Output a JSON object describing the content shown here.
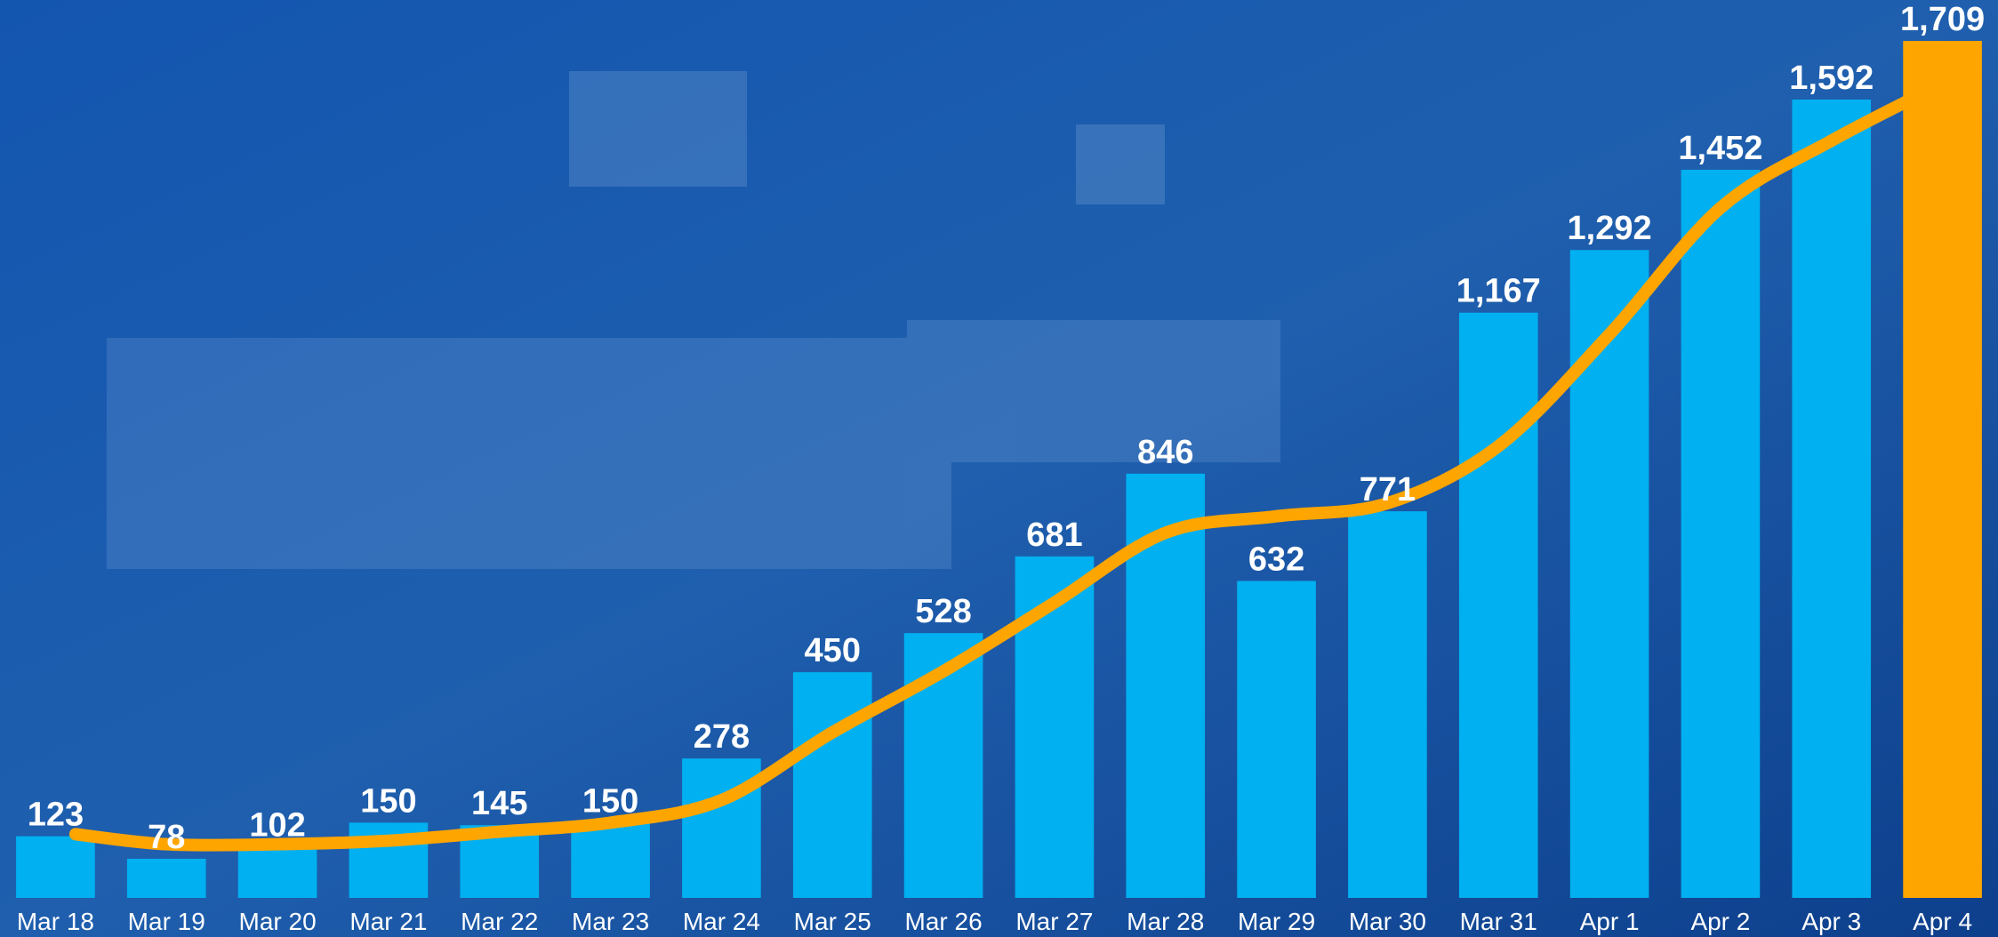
{
  "chart_data": {
    "type": "bar",
    "categories": [
      "Mar 18",
      "Mar 19",
      "Mar 20",
      "Mar 21",
      "Mar 22",
      "Mar 23",
      "Mar 24",
      "Mar 25",
      "Mar 26",
      "Mar 27",
      "Mar 28",
      "Mar 29",
      "Mar 30",
      "Mar 31",
      "Apr 1",
      "Apr 2",
      "Apr 3",
      "Apr 4"
    ],
    "values": [
      123,
      78,
      102,
      150,
      145,
      150,
      278,
      450,
      528,
      681,
      846,
      632,
      771,
      1167,
      1292,
      1452,
      1592,
      1709
    ],
    "value_labels": [
      "123",
      "78",
      "102",
      "150",
      "145",
      "150",
      "278",
      "450",
      "528",
      "681",
      "846",
      "632",
      "771",
      "1,167",
      "1,292",
      "1,452",
      "1,592",
      "1,709"
    ],
    "colors": [
      "#00b0f0",
      "#00b0f0",
      "#00b0f0",
      "#00b0f0",
      "#00b0f0",
      "#00b0f0",
      "#00b0f0",
      "#00b0f0",
      "#00b0f0",
      "#00b0f0",
      "#00b0f0",
      "#00b0f0",
      "#00b0f0",
      "#00b0f0",
      "#00b0f0",
      "#00b0f0",
      "#00b0f0",
      "#ffa500"
    ],
    "line": {
      "color": "#ffa500",
      "values": [
        127,
        107,
        107,
        114,
        132,
        150,
        195,
        330,
        452,
        589,
        728,
        761,
        787,
        901,
        1124,
        1376,
        1510,
        1624
      ]
    },
    "ylim": [
      0,
      1709
    ]
  }
}
